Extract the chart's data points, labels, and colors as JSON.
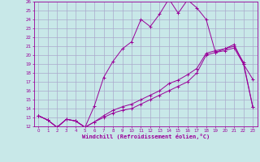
{
  "xlabel": "Windchill (Refroidissement éolien,°C)",
  "background_color": "#c8e8e8",
  "grid_color": "#aaaacc",
  "line_color": "#990099",
  "xlim": [
    -0.5,
    23.5
  ],
  "ylim": [
    12,
    26
  ],
  "yticks": [
    12,
    13,
    14,
    15,
    16,
    17,
    18,
    19,
    20,
    21,
    22,
    23,
    24,
    25,
    26
  ],
  "xticks": [
    0,
    1,
    2,
    3,
    4,
    5,
    6,
    7,
    8,
    9,
    10,
    11,
    12,
    13,
    14,
    15,
    16,
    17,
    18,
    19,
    20,
    21,
    22,
    23
  ],
  "series1_x": [
    0,
    1,
    2,
    3,
    4,
    5,
    6,
    7,
    8,
    9,
    10,
    11,
    12,
    13,
    14,
    15,
    16,
    17,
    18,
    19,
    20,
    21,
    22,
    23
  ],
  "series1_y": [
    13.2,
    12.7,
    11.9,
    12.8,
    12.6,
    11.9,
    14.3,
    17.5,
    19.3,
    20.7,
    21.5,
    24.0,
    23.2,
    24.6,
    26.3,
    24.7,
    26.2,
    25.3,
    24.0,
    20.3,
    20.7,
    21.2,
    19.0,
    17.3
  ],
  "series2_x": [
    0,
    1,
    2,
    3,
    4,
    5,
    6,
    7,
    8,
    9,
    10,
    11,
    12,
    13,
    14,
    15,
    16,
    17,
    18,
    19,
    20,
    21,
    22,
    23
  ],
  "series2_y": [
    13.2,
    12.7,
    11.9,
    12.8,
    12.6,
    11.9,
    12.5,
    13.0,
    13.5,
    13.8,
    14.0,
    14.5,
    15.0,
    15.5,
    16.0,
    16.5,
    17.0,
    18.0,
    20.0,
    20.3,
    20.5,
    20.8,
    19.0,
    14.2
  ],
  "series3_x": [
    0,
    1,
    2,
    3,
    4,
    5,
    6,
    7,
    8,
    9,
    10,
    11,
    12,
    13,
    14,
    15,
    16,
    17,
    18,
    19,
    20,
    21,
    22,
    23
  ],
  "series3_y": [
    13.2,
    12.7,
    11.9,
    12.8,
    12.6,
    11.9,
    12.5,
    13.2,
    13.8,
    14.2,
    14.5,
    15.0,
    15.5,
    16.0,
    16.8,
    17.2,
    17.8,
    18.5,
    20.2,
    20.5,
    20.7,
    21.0,
    19.2,
    14.2
  ]
}
